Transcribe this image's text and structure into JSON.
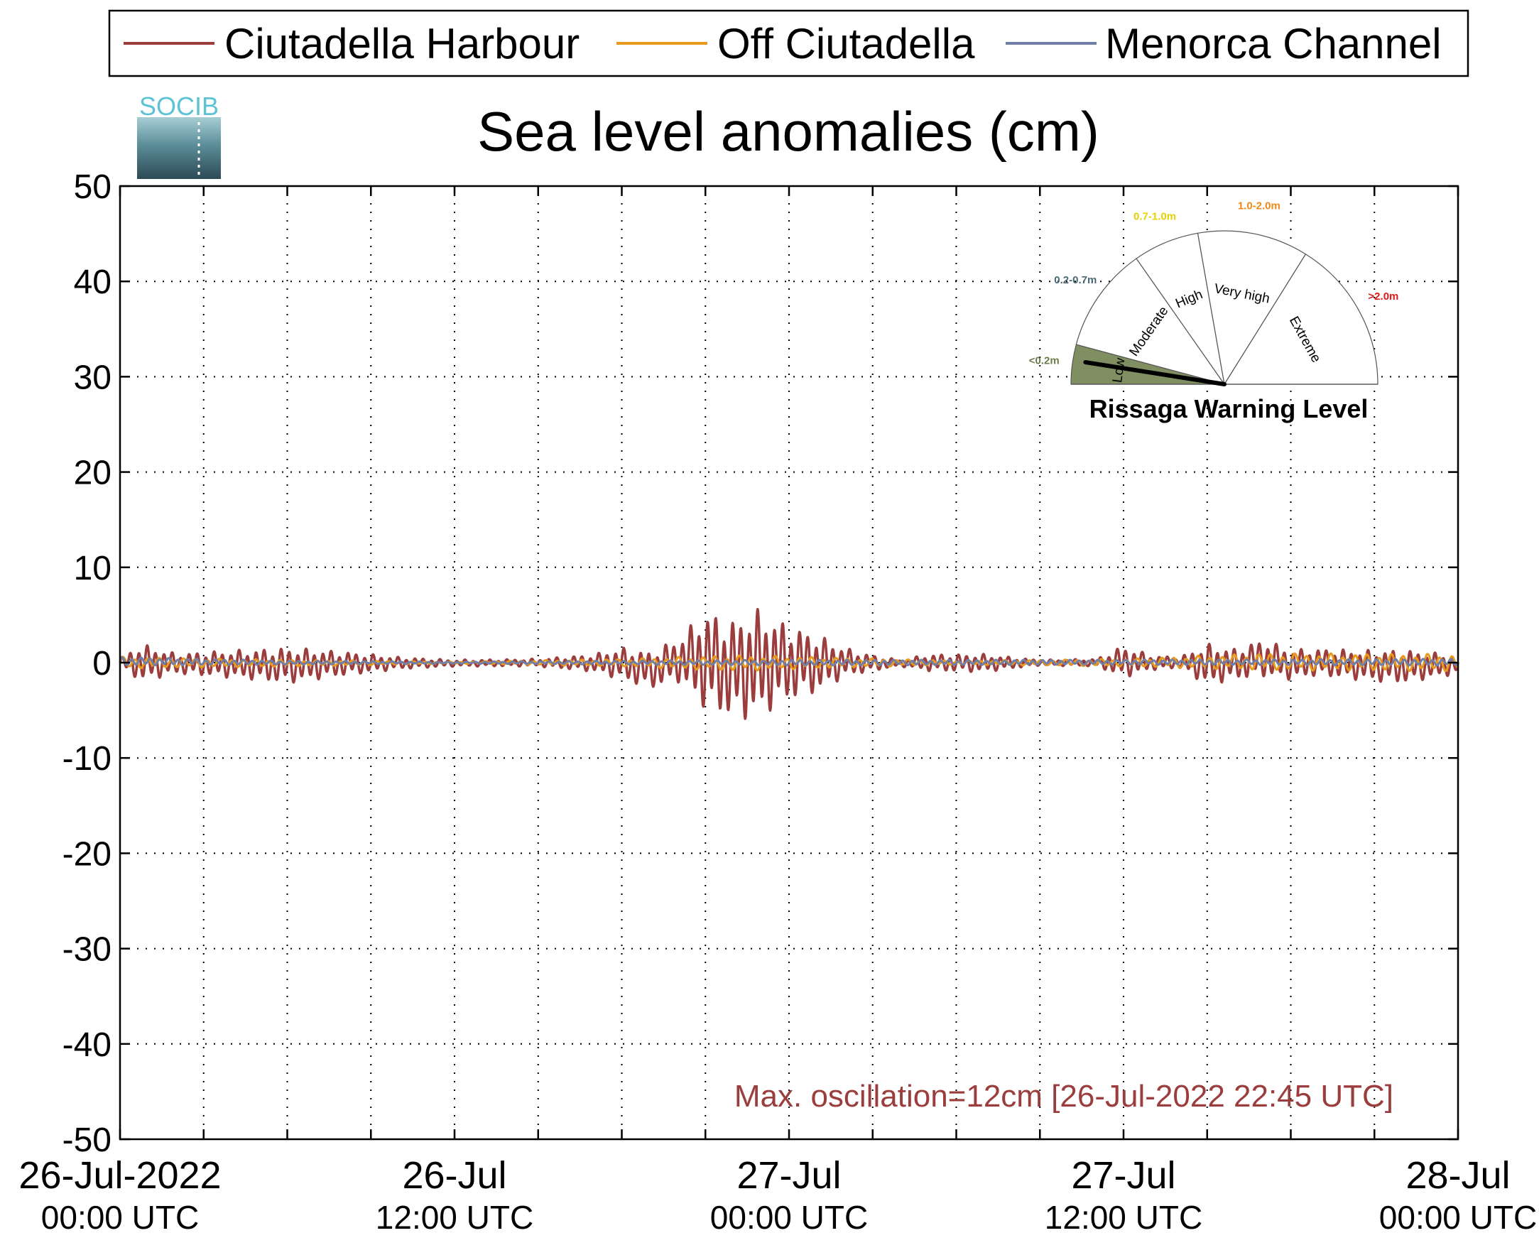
{
  "legend": {
    "items": [
      {
        "label": "Ciutadella Harbour",
        "color": "#9b3d3d"
      },
      {
        "label": "Off Ciutadella",
        "color": "#e89a1c"
      },
      {
        "label": "Menorca Channel",
        "color": "#6f7fa8"
      }
    ]
  },
  "logo": {
    "text": "SOCIB",
    "color": "#5bc3d4"
  },
  "chart_data": {
    "type": "line",
    "title": "Sea level anomalies (cm)",
    "xlabel": "",
    "ylabel": "",
    "ylim": [
      -50,
      50
    ],
    "yticks": [
      -50,
      -40,
      -30,
      -20,
      -10,
      0,
      10,
      20,
      30,
      40,
      50
    ],
    "xlim": [
      "2022-07-26T00:00",
      "2022-07-28T00:00"
    ],
    "x_major_ticks": [
      {
        "t": "2022-07-26T00:00",
        "date": "26-Jul-2022",
        "time": "00:00 UTC"
      },
      {
        "t": "2022-07-26T12:00",
        "date": "26-Jul",
        "time": "12:00 UTC"
      },
      {
        "t": "2022-07-27T00:00",
        "date": "27-Jul",
        "time": "00:00 UTC"
      },
      {
        "t": "2022-07-27T12:00",
        "date": "27-Jul",
        "time": "12:00 UTC"
      },
      {
        "t": "2022-07-28T00:00",
        "date": "28-Jul",
        "time": "00:00 UTC"
      }
    ],
    "grid": true,
    "legend_placement": "top",
    "series": [
      {
        "name": "Ciutadella Harbour",
        "color": "#9b3d3d",
        "envelope_points": [
          {
            "t": "2022-07-26T00:00",
            "max": 0.5,
            "min": -0.5
          },
          {
            "t": "2022-07-26T00:45",
            "max": 2.0,
            "min": -2.0
          },
          {
            "t": "2022-07-26T02:00",
            "max": 1.0,
            "min": -1.2
          },
          {
            "t": "2022-07-26T04:00",
            "max": 1.3,
            "min": -1.6
          },
          {
            "t": "2022-07-26T06:00",
            "max": 1.6,
            "min": -2.2
          },
          {
            "t": "2022-07-26T08:00",
            "max": 1.2,
            "min": -1.4
          },
          {
            "t": "2022-07-26T10:00",
            "max": 0.6,
            "min": -0.7
          },
          {
            "t": "2022-07-26T12:00",
            "max": 0.3,
            "min": -0.4
          },
          {
            "t": "2022-07-26T15:00",
            "max": 0.4,
            "min": -0.4
          },
          {
            "t": "2022-07-26T17:00",
            "max": 0.9,
            "min": -1.0
          },
          {
            "t": "2022-07-26T18:00",
            "max": 1.6,
            "min": -1.8
          },
          {
            "t": "2022-07-26T19:00",
            "max": 1.2,
            "min": -2.8
          },
          {
            "t": "2022-07-26T20:00",
            "max": 2.5,
            "min": -2.0
          },
          {
            "t": "2022-07-26T21:00",
            "max": 5.5,
            "min": -5.0
          },
          {
            "t": "2022-07-26T22:00",
            "max": 4.5,
            "min": -6.0
          },
          {
            "t": "2022-07-26T22:45",
            "max": 5.8,
            "min": -6.0
          },
          {
            "t": "2022-07-27T00:00",
            "max": 4.0,
            "min": -4.0
          },
          {
            "t": "2022-07-27T01:00",
            "max": 3.0,
            "min": -3.2
          },
          {
            "t": "2022-07-27T02:00",
            "max": 1.6,
            "min": -1.5
          },
          {
            "t": "2022-07-27T03:00",
            "max": 0.8,
            "min": -0.9
          },
          {
            "t": "2022-07-27T04:00",
            "max": 0.3,
            "min": -0.4
          },
          {
            "t": "2022-07-27T05:00",
            "max": 0.9,
            "min": -0.9
          },
          {
            "t": "2022-07-27T07:00",
            "max": 0.9,
            "min": -1.0
          },
          {
            "t": "2022-07-27T09:00",
            "max": 0.3,
            "min": -0.3
          },
          {
            "t": "2022-07-27T11:00",
            "max": 0.4,
            "min": -0.4
          },
          {
            "t": "2022-07-27T12:00",
            "max": 1.8,
            "min": -1.6
          },
          {
            "t": "2022-07-27T13:00",
            "max": 0.8,
            "min": -0.8
          },
          {
            "t": "2022-07-27T14:00",
            "max": 0.6,
            "min": -0.6
          },
          {
            "t": "2022-07-27T15:00",
            "max": 2.0,
            "min": -2.4
          },
          {
            "t": "2022-07-27T16:00",
            "max": 1.5,
            "min": -1.8
          },
          {
            "t": "2022-07-27T17:00",
            "max": 2.5,
            "min": -1.5
          },
          {
            "t": "2022-07-27T18:00",
            "max": 1.4,
            "min": -1.8
          },
          {
            "t": "2022-07-27T19:00",
            "max": 1.5,
            "min": -1.4
          },
          {
            "t": "2022-07-27T21:00",
            "max": 1.3,
            "min": -2.0
          },
          {
            "t": "2022-07-27T22:00",
            "max": 1.4,
            "min": -2.2
          },
          {
            "t": "2022-07-28T00:00",
            "max": 0.8,
            "min": -1.2
          }
        ]
      },
      {
        "name": "Off Ciutadella",
        "color": "#e89a1c",
        "envelope_points": [
          {
            "t": "2022-07-26T00:00",
            "max": 0.6,
            "min": -0.6
          },
          {
            "t": "2022-07-26T06:00",
            "max": 0.3,
            "min": -0.4
          },
          {
            "t": "2022-07-26T12:00",
            "max": 0.1,
            "min": -0.1
          },
          {
            "t": "2022-07-26T18:00",
            "max": 0.4,
            "min": -0.4
          },
          {
            "t": "2022-07-26T22:00",
            "max": 0.8,
            "min": -0.9
          },
          {
            "t": "2022-07-27T01:00",
            "max": 0.6,
            "min": -0.6
          },
          {
            "t": "2022-07-27T06:00",
            "max": 0.2,
            "min": -0.2
          },
          {
            "t": "2022-07-27T12:00",
            "max": 0.4,
            "min": -0.4
          },
          {
            "t": "2022-07-27T17:00",
            "max": 1.0,
            "min": -0.8
          },
          {
            "t": "2022-07-28T00:00",
            "max": 0.9,
            "min": -0.9
          }
        ]
      },
      {
        "name": "Menorca Channel",
        "color": "#6f7fa8",
        "envelope_points": [
          {
            "t": "2022-07-26T00:00",
            "max": 0.6,
            "min": -0.3
          },
          {
            "t": "2022-07-26T06:00",
            "max": 0.2,
            "min": -0.2
          },
          {
            "t": "2022-07-26T12:00",
            "max": 0.1,
            "min": -0.1
          },
          {
            "t": "2022-07-27T00:00",
            "max": 0.3,
            "min": -0.3
          },
          {
            "t": "2022-07-27T12:00",
            "max": 0.3,
            "min": -0.2
          },
          {
            "t": "2022-07-28T00:00",
            "max": 0.4,
            "min": -0.3
          }
        ]
      }
    ],
    "annotation": {
      "text": "Max. oscillation=12cm [26-Jul-2022 22:45 UTC]",
      "color": "#9b3d3d"
    }
  },
  "gauge": {
    "title": "Rissaga Warning Level",
    "current_level": "Low",
    "segments": [
      {
        "label": "Low",
        "range": "<0.2m",
        "range_color": "#6b7c4a",
        "active": true,
        "fill": "#7f8f62"
      },
      {
        "label": "Moderate",
        "range": "0.2-0.7m",
        "range_color": "#4b6a78",
        "active": false,
        "fill": "#ffffff"
      },
      {
        "label": "High",
        "range": "0.7-1.0m",
        "range_color": "#e5d100",
        "active": false,
        "fill": "#ffffff"
      },
      {
        "label": "Very high",
        "range": "1.0-2.0m",
        "range_color": "#ef8a17",
        "active": false,
        "fill": "#ffffff"
      },
      {
        "label": "Extreme",
        "range": ">2.0m",
        "range_color": "#e01818",
        "active": false,
        "fill": "#ffffff"
      }
    ]
  }
}
